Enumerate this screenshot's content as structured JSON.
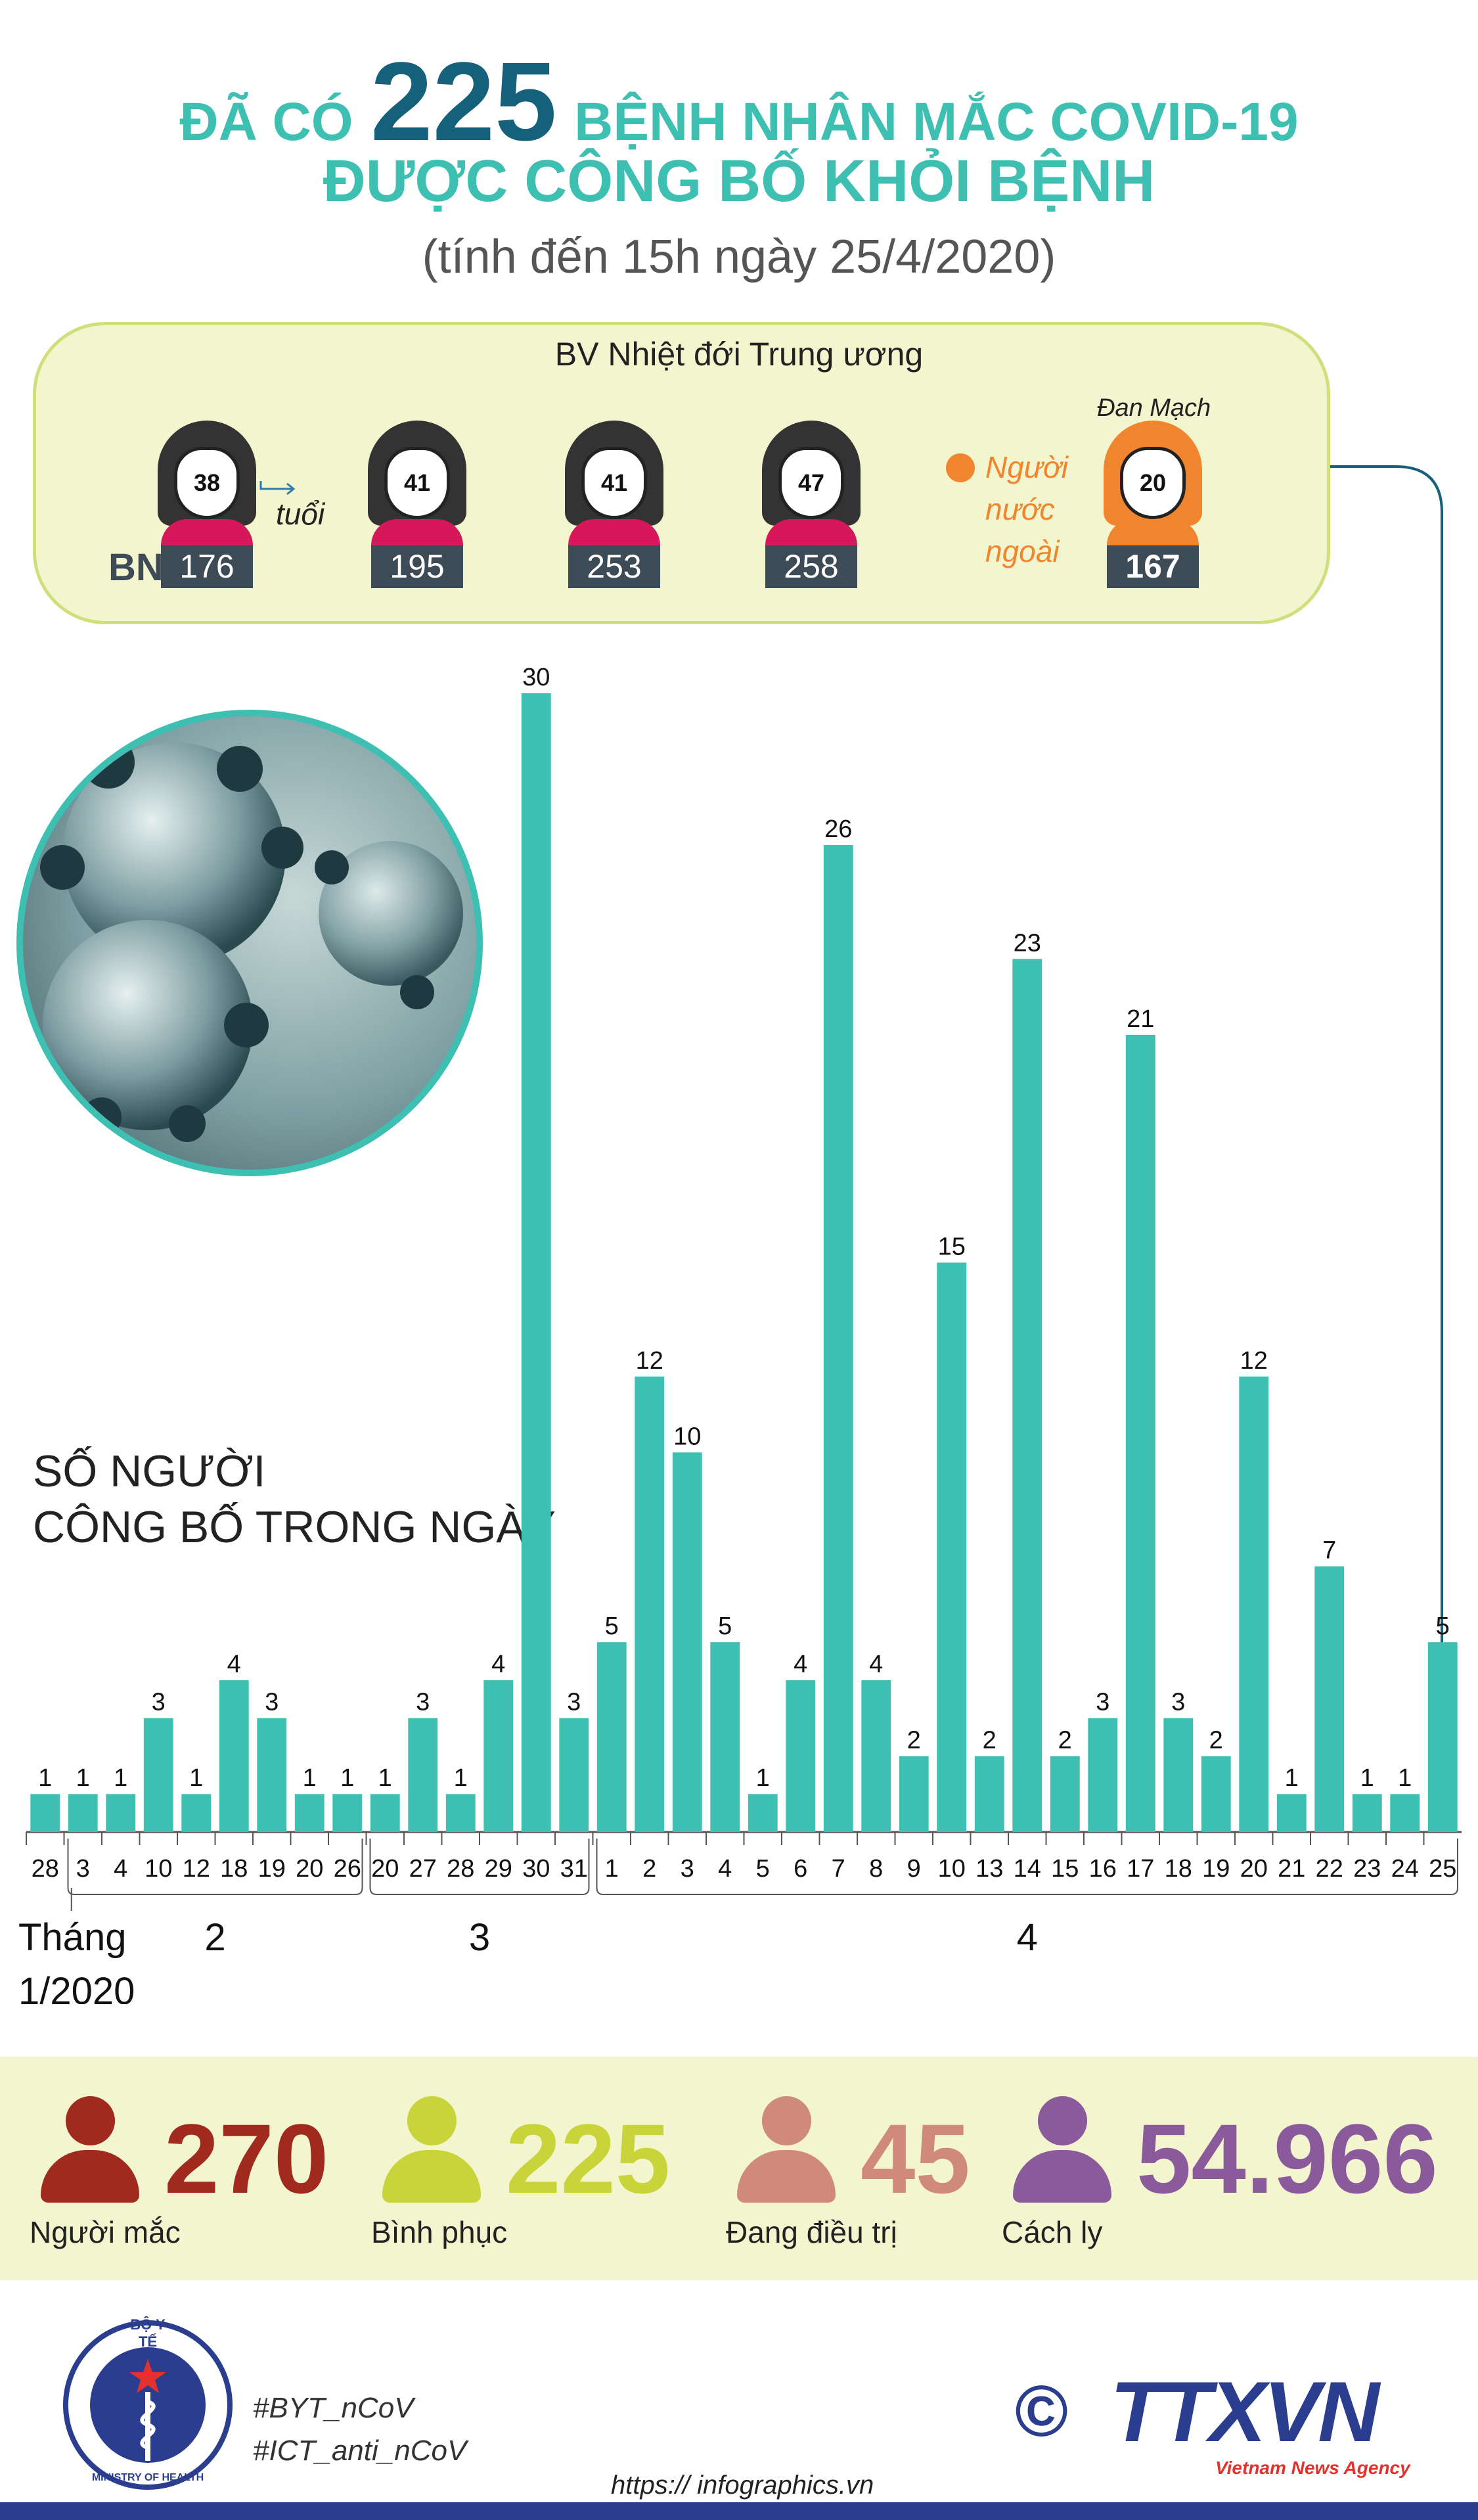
{
  "header": {
    "title_pre": "ĐÃ CÓ",
    "title_number": "225",
    "title_post": "BỆNH NHÂN MẮC COVID-19",
    "title_line2": "ĐƯỢC CÔNG BỐ KHỎI BỆNH",
    "subtitle": "(tính đến 15h ngày 25/4/2020)"
  },
  "hospital": {
    "name": "BV Nhiệt đới Trung ương",
    "id_prefix": "BN",
    "age_label": "tuổi",
    "foreigner_label_1": "Người",
    "foreigner_label_2": "nước",
    "foreigner_label_3": "ngoài",
    "patients": [
      {
        "age": "38",
        "id": "176"
      },
      {
        "age": "41",
        "id": "195"
      },
      {
        "age": "41",
        "id": "253"
      },
      {
        "age": "47",
        "id": "258"
      }
    ],
    "foreign_patient": {
      "country": "Đan Mạch",
      "age": "20",
      "id": "167"
    }
  },
  "chart_label_1": "SỐ NGƯỜI",
  "chart_label_2": "CÔNG BỐ TRONG NGÀY",
  "chart_data": {
    "type": "bar",
    "categories": [
      "28",
      "3",
      "4",
      "10",
      "12",
      "18",
      "19",
      "20",
      "26",
      "20",
      "27",
      "28",
      "29",
      "30",
      "31",
      "1",
      "2",
      "3",
      "4",
      "5",
      "6",
      "7",
      "8",
      "9",
      "10",
      "13",
      "14",
      "15",
      "16",
      "17",
      "18",
      "19",
      "20",
      "21",
      "22",
      "23",
      "24",
      "25"
    ],
    "values": [
      1,
      1,
      1,
      3,
      1,
      4,
      3,
      1,
      1,
      1,
      3,
      1,
      4,
      30,
      3,
      5,
      12,
      10,
      5,
      1,
      4,
      26,
      4,
      2,
      15,
      2,
      23,
      2,
      3,
      21,
      3,
      2,
      12,
      1,
      7,
      1,
      1,
      5
    ],
    "groups": [
      {
        "label": "Tháng",
        "label2": "1/2020",
        "count": 1
      },
      {
        "label": "2",
        "count": 8
      },
      {
        "label": "3",
        "count": 6
      },
      {
        "label": "4",
        "count": 23
      }
    ],
    "ylim": [
      0,
      30
    ],
    "grid": false,
    "color": "#3dbfb1"
  },
  "stats": [
    {
      "value": "270",
      "label": "Người mắc",
      "color": "#a02a1e"
    },
    {
      "value": "225",
      "label": "Bình phục",
      "color": "#c8d43a"
    },
    {
      "value": "45",
      "label": "Đang điều trị",
      "color": "#d08a7a"
    },
    {
      "value": "54.966",
      "label": "Cách ly",
      "color": "#8a5a9a"
    }
  ],
  "footer": {
    "tag1": "#BYT_nCoV",
    "tag2": "#ICT_anti_nCoV",
    "url": "https:// infographics.vn",
    "copyright": "©",
    "agency": "TTXVN",
    "agency_sub": "Vietnam News Agency",
    "ministry_top": "BỘ Y TẾ",
    "ministry_bottom": "MINISTRY OF HEALTH"
  }
}
